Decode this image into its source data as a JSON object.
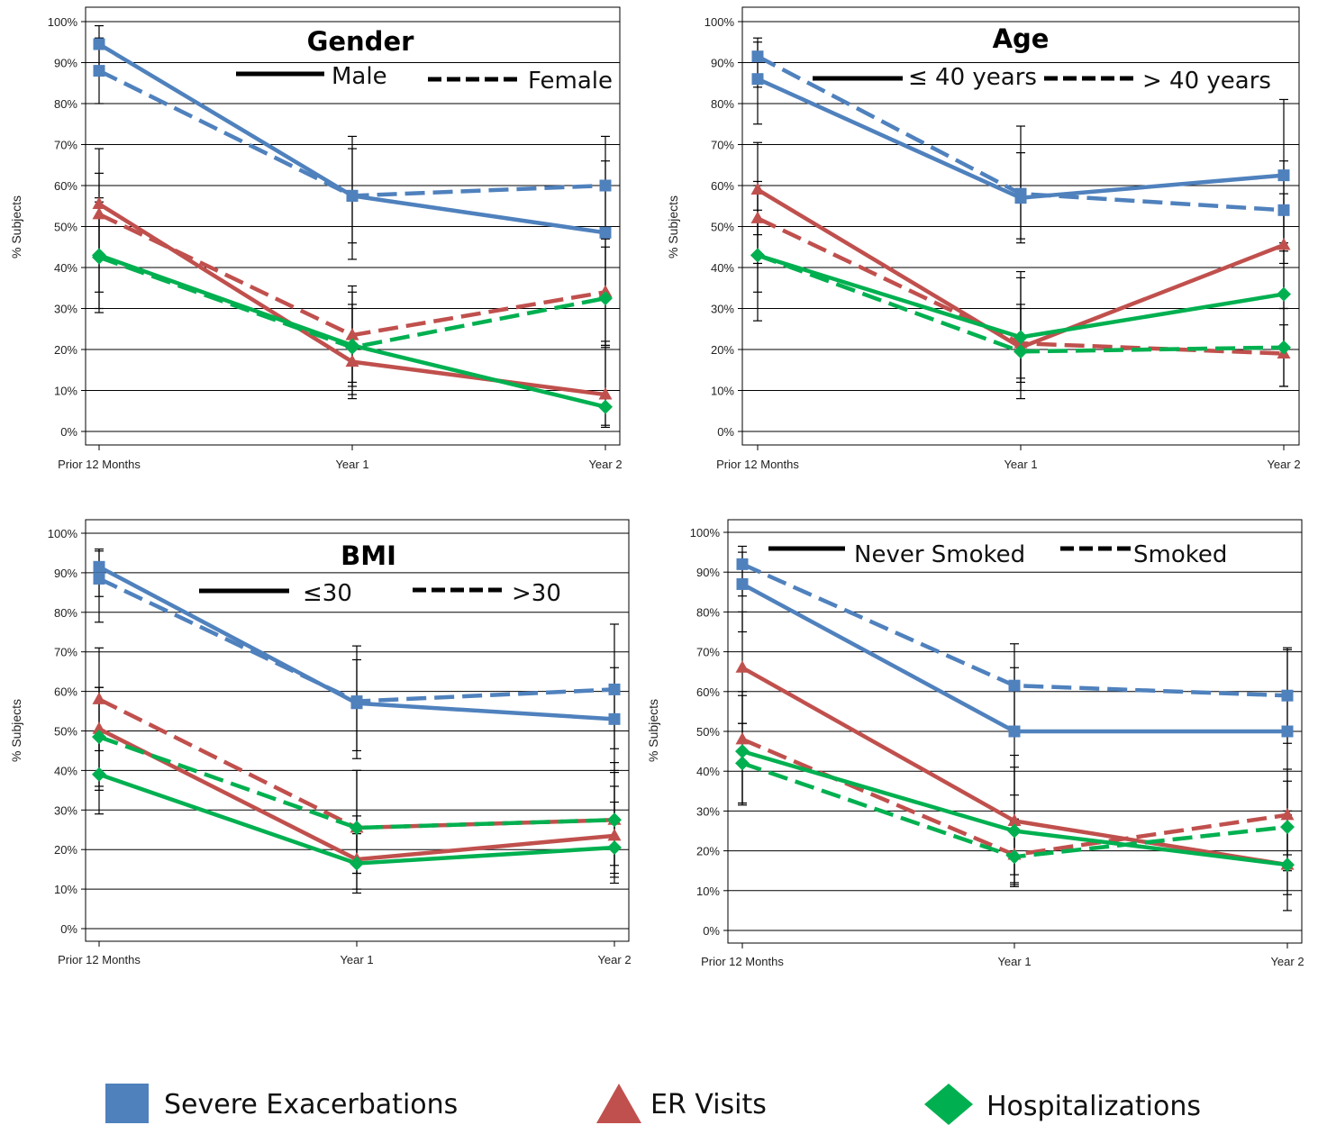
{
  "colors": {
    "severe_exacerbations": "#4f81bd",
    "er_visits": "#c0504d",
    "hospitalizations": "#00b050"
  },
  "legend": [
    {
      "label": "Severe Exacerbations",
      "marker": "square",
      "color_key": "severe_exacerbations"
    },
    {
      "label": "ER Visits",
      "marker": "triangle",
      "color_key": "er_visits"
    },
    {
      "label": "Hospitalizations",
      "marker": "diamond",
      "color_key": "hospitalizations"
    }
  ],
  "chart_data": [
    {
      "type": "line",
      "title": "Gender",
      "ylabel": "% Subjects",
      "ylim": [
        0,
        100
      ],
      "yticks": [
        "0%",
        "10%",
        "20%",
        "30%",
        "40%",
        "50%",
        "60%",
        "70%",
        "80%",
        "90%",
        "100%"
      ],
      "categories": [
        "Prior 12 Months",
        "Year 1",
        "Year 2"
      ],
      "line_styles": [
        {
          "label": "Male",
          "style": "solid"
        },
        {
          "label": "Female",
          "style": "dashed"
        }
      ],
      "grid": true,
      "series": [
        {
          "color_key": "severe_exacerbations",
          "marker": "square",
          "style": "solid",
          "values": [
            94.5,
            57.5,
            48.5
          ],
          "err_low": [
            88,
            46,
            33
          ],
          "err_high": [
            99,
            69,
            66
          ]
        },
        {
          "color_key": "severe_exacerbations",
          "marker": "square",
          "style": "dashed",
          "values": [
            88,
            57.5,
            60
          ],
          "err_low": [
            80,
            42,
            47
          ],
          "err_high": [
            96,
            72,
            72
          ]
        },
        {
          "color_key": "er_visits",
          "marker": "triangle",
          "style": "solid",
          "values": [
            55.5,
            17,
            9
          ],
          "err_low": [
            42,
            8,
            1
          ],
          "err_high": [
            69,
            30,
            22
          ]
        },
        {
          "color_key": "er_visits",
          "marker": "triangle",
          "style": "dashed",
          "values": [
            53,
            23.5,
            34
          ],
          "err_low": [
            34,
            12,
            21
          ],
          "err_high": [
            63,
            35.5,
            47
          ]
        },
        {
          "color_key": "hospitalizations",
          "marker": "diamond",
          "style": "solid",
          "values": [
            43,
            21,
            6
          ],
          "err_low": [
            29,
            11,
            1.5
          ],
          "err_high": [
            57,
            31,
            20.5
          ]
        },
        {
          "color_key": "hospitalizations",
          "marker": "diamond",
          "style": "dashed",
          "values": [
            42.5,
            20.5,
            32.5
          ],
          "err_low": [
            30,
            9,
            21
          ],
          "err_high": [
            56,
            34,
            45
          ]
        }
      ]
    },
    {
      "type": "line",
      "title": "Age",
      "ylabel": "% Subjects",
      "ylim": [
        0,
        100
      ],
      "yticks": [
        "0%",
        "10%",
        "20%",
        "30%",
        "40%",
        "50%",
        "60%",
        "70%",
        "80%",
        "90%",
        "100%"
      ],
      "categories": [
        "Prior 12 Months",
        "Year 1",
        "Year 2"
      ],
      "line_styles": [
        {
          "label": "≤ 40 years",
          "style": "solid"
        },
        {
          "label": "> 40 years",
          "style": "dashed"
        }
      ],
      "grid": true,
      "series": [
        {
          "color_key": "severe_exacerbations",
          "marker": "square",
          "style": "solid",
          "values": [
            86,
            57,
            62.5
          ],
          "err_low": [
            75,
            46,
            44
          ],
          "err_high": [
            95,
            68,
            81
          ]
        },
        {
          "color_key": "severe_exacerbations",
          "marker": "square",
          "style": "dashed",
          "values": [
            91.5,
            58,
            54
          ],
          "err_low": [
            84,
            47,
            41
          ],
          "err_high": [
            96,
            74.5,
            66
          ]
        },
        {
          "color_key": "er_visits",
          "marker": "triangle",
          "style": "solid",
          "values": [
            59,
            20.5,
            45.5
          ],
          "err_low": [
            48,
            10,
            30
          ],
          "err_high": [
            70.5,
            37.5,
            58
          ]
        },
        {
          "color_key": "er_visits",
          "marker": "triangle",
          "style": "dashed",
          "values": [
            52,
            21.5,
            19
          ],
          "err_low": [
            41,
            12,
            11
          ],
          "err_high": [
            61,
            31,
            26
          ]
        },
        {
          "color_key": "hospitalizations",
          "marker": "diamond",
          "style": "solid",
          "values": [
            43,
            23,
            33.5
          ],
          "err_low": [
            27,
            13,
            21
          ],
          "err_high": [
            60,
            39,
            46
          ]
        },
        {
          "color_key": "hospitalizations",
          "marker": "diamond",
          "style": "dashed",
          "values": [
            43,
            19.5,
            20.5
          ],
          "err_low": [
            34,
            8,
            11
          ],
          "err_high": [
            54,
            30,
            30
          ]
        }
      ]
    },
    {
      "type": "line",
      "title": "BMI",
      "ylabel": "% Subjects",
      "ylim": [
        0,
        100
      ],
      "yticks": [
        "0%",
        "10%",
        "20%",
        "30%",
        "40%",
        "50%",
        "60%",
        "70%",
        "80%",
        "90%",
        "100%"
      ],
      "categories": [
        "Prior 12 Months",
        "Year 1",
        "Year 2"
      ],
      "line_styles": [
        {
          "label": "≤30",
          "style": "solid"
        },
        {
          "label": ">30",
          "style": "dashed"
        }
      ],
      "grid": true,
      "series": [
        {
          "color_key": "severe_exacerbations",
          "marker": "square",
          "style": "solid",
          "values": [
            91.5,
            57,
            53
          ],
          "err_low": [
            84,
            45,
            40
          ],
          "err_high": [
            96,
            68,
            66
          ]
        },
        {
          "color_key": "severe_exacerbations",
          "marker": "square",
          "style": "dashed",
          "values": [
            88.5,
            57.5,
            60.5
          ],
          "err_low": [
            77.5,
            43,
            45.5
          ],
          "err_high": [
            95.5,
            71.5,
            77
          ]
        },
        {
          "color_key": "er_visits",
          "marker": "triangle",
          "style": "solid",
          "values": [
            50.5,
            17.5,
            23.5
          ],
          "err_low": [
            36,
            9,
            11.5
          ],
          "err_high": [
            61,
            28.5,
            36
          ]
        },
        {
          "color_key": "er_visits",
          "marker": "triangle",
          "style": "dashed",
          "values": [
            58,
            25.5,
            27.5
          ],
          "err_low": [
            45,
            14,
            16
          ],
          "err_high": [
            71,
            40,
            42
          ]
        },
        {
          "color_key": "hospitalizations",
          "marker": "diamond",
          "style": "solid",
          "values": [
            39,
            16.5,
            20.5
          ],
          "err_low": [
            29,
            10,
            13
          ],
          "err_high": [
            50,
            24,
            32
          ]
        },
        {
          "color_key": "hospitalizations",
          "marker": "diamond",
          "style": "dashed",
          "values": [
            48.5,
            25.5,
            27.5
          ],
          "err_low": [
            35,
            14,
            14
          ],
          "err_high": [
            61,
            40,
            39.5
          ]
        }
      ]
    },
    {
      "type": "line",
      "title": "",
      "ylabel": "% Subjects",
      "ylim": [
        0,
        100
      ],
      "yticks": [
        "0%",
        "10%",
        "20%",
        "30%",
        "40%",
        "50%",
        "60%",
        "70%",
        "80%",
        "90%",
        "100%"
      ],
      "categories": [
        "Prior 12 Months",
        "Year 1",
        "Year 2"
      ],
      "line_styles": [
        {
          "label": "Never Smoked",
          "style": "solid"
        },
        {
          "label": "Smoked",
          "style": "dashed"
        }
      ],
      "grid": true,
      "series": [
        {
          "color_key": "severe_exacerbations",
          "marker": "square",
          "style": "solid",
          "values": [
            87,
            50,
            50
          ],
          "err_low": [
            75,
            34,
            29
          ],
          "err_high": [
            95,
            66,
            70.5
          ]
        },
        {
          "color_key": "severe_exacerbations",
          "marker": "square",
          "style": "dashed",
          "values": [
            92,
            61.5,
            59
          ],
          "err_low": [
            84,
            50,
            47
          ],
          "err_high": [
            96.5,
            72,
            71
          ]
        },
        {
          "color_key": "er_visits",
          "marker": "triangle",
          "style": "solid",
          "values": [
            66,
            27.5,
            16.5
          ],
          "err_low": [
            52,
            14,
            5
          ],
          "err_high": [
            80,
            41,
            30
          ]
        },
        {
          "color_key": "er_visits",
          "marker": "triangle",
          "style": "dashed",
          "values": [
            48,
            19,
            29
          ],
          "err_low": [
            32,
            11,
            19
          ],
          "err_high": [
            60,
            27.5,
            40.5
          ]
        },
        {
          "color_key": "hospitalizations",
          "marker": "diamond",
          "style": "solid",
          "values": [
            45,
            25,
            16.5
          ],
          "err_low": [
            31.5,
            12,
            9
          ],
          "err_high": [
            59,
            44,
            26
          ]
        },
        {
          "color_key": "hospitalizations",
          "marker": "diamond",
          "style": "dashed",
          "values": [
            42,
            18.5,
            26
          ],
          "err_low": [
            32,
            11.5,
            15
          ],
          "err_high": [
            52,
            28,
            37.5
          ]
        }
      ]
    }
  ]
}
